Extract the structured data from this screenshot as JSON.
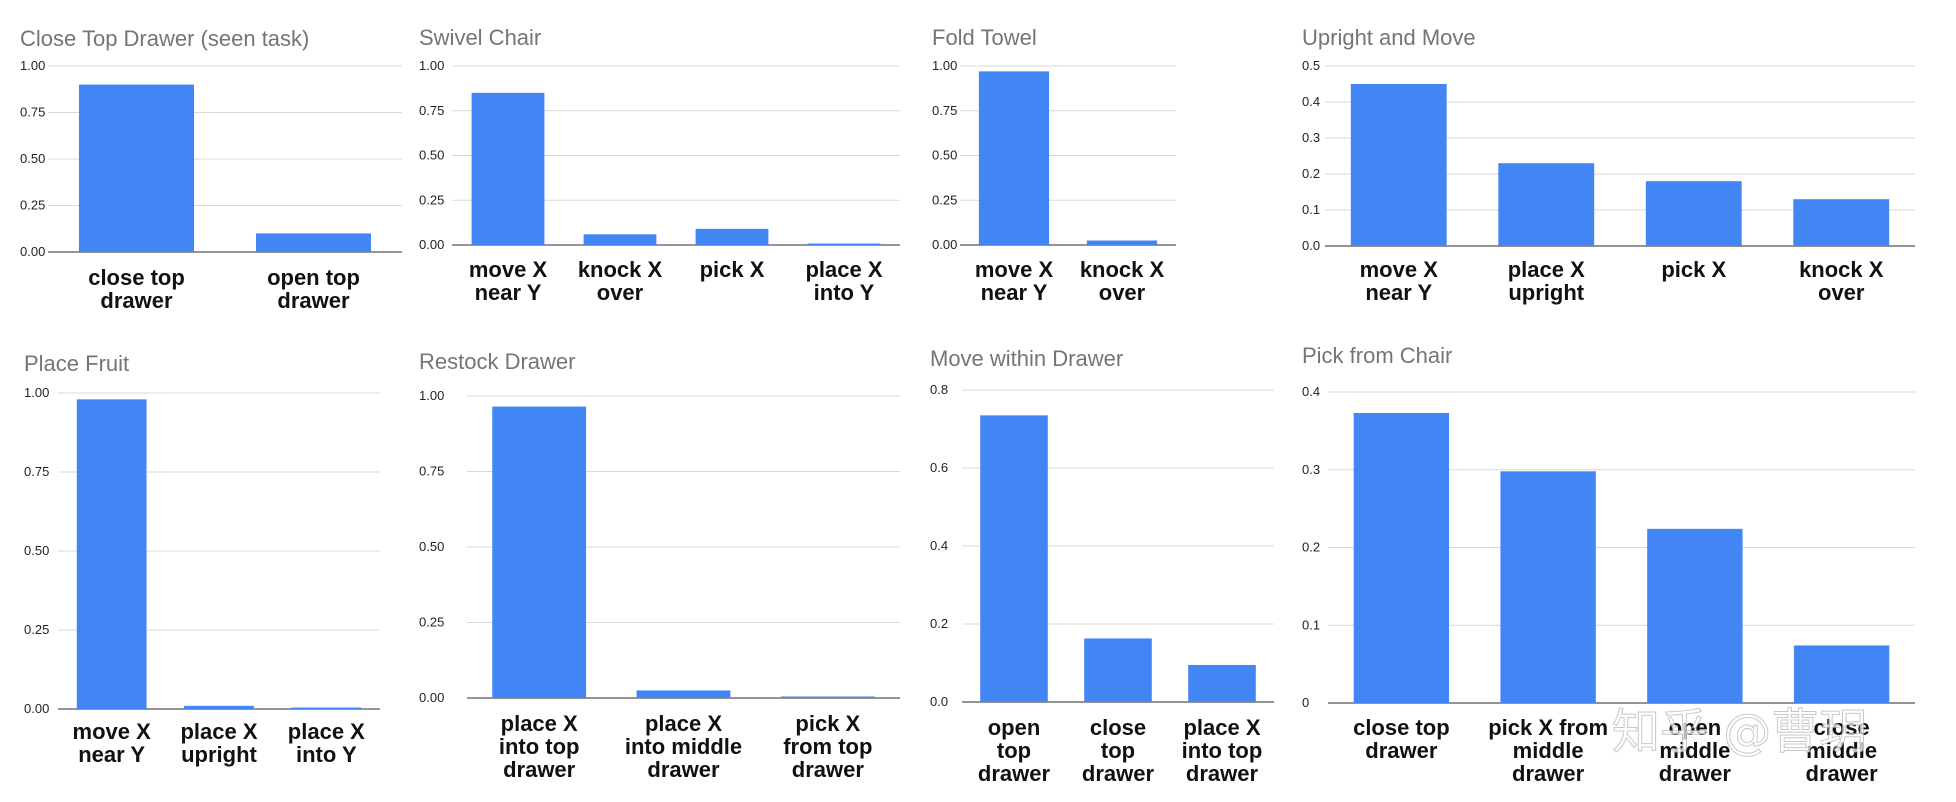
{
  "colors": {
    "bar": "#4285f4",
    "grid": "#d8d8d8",
    "title": "#757575"
  },
  "watermark": "知乎 @曹玥",
  "chart_data": [
    {
      "type": "bar",
      "title": "Close Top Drawer (seen task)",
      "categories": [
        [
          "close top",
          "drawer"
        ],
        [
          "open top",
          "drawer"
        ]
      ],
      "values": [
        0.9,
        0.1
      ],
      "ylim": [
        0,
        1.0
      ],
      "yticks": [
        "0.00",
        "0.25",
        "0.50",
        "0.75",
        "1.00"
      ],
      "grid": true
    },
    {
      "type": "bar",
      "title": "Swivel Chair",
      "categories": [
        [
          "move X",
          "near Y"
        ],
        [
          "knock X",
          "over"
        ],
        [
          "pick X"
        ],
        [
          "place X",
          "into Y"
        ]
      ],
      "values": [
        0.85,
        0.06,
        0.09,
        0.005
      ],
      "ylim": [
        0,
        1.0
      ],
      "yticks": [
        "0.00",
        "0.25",
        "0.50",
        "0.75",
        "1.00"
      ],
      "grid": true
    },
    {
      "type": "bar",
      "title": "Fold Towel",
      "categories": [
        [
          "move X",
          "near Y"
        ],
        [
          "knock X",
          "over"
        ]
      ],
      "values": [
        0.97,
        0.025
      ],
      "ylim": [
        0,
        1.0
      ],
      "yticks": [
        "0.00",
        "0.25",
        "0.50",
        "0.75",
        "1.00"
      ],
      "grid": true
    },
    {
      "type": "bar",
      "title": "Upright and Move",
      "categories": [
        [
          "move X",
          "near Y"
        ],
        [
          "place X",
          "upright"
        ],
        [
          "pick X"
        ],
        [
          "knock X",
          "over"
        ]
      ],
      "values": [
        0.45,
        0.23,
        0.18,
        0.13
      ],
      "ylim": [
        0,
        0.5
      ],
      "yticks": [
        "0.0",
        "0.1",
        "0.2",
        "0.3",
        "0.4",
        "0.5"
      ],
      "grid": true
    },
    {
      "type": "bar",
      "title": "Place Fruit",
      "categories": [
        [
          "move X",
          "near Y"
        ],
        [
          "place X",
          "upright"
        ],
        [
          "place X",
          "into Y"
        ]
      ],
      "values": [
        0.98,
        0.01,
        0.004
      ],
      "ylim": [
        0,
        1.0
      ],
      "yticks": [
        "0.00",
        "0.25",
        "0.50",
        "0.75",
        "1.00"
      ],
      "grid": true
    },
    {
      "type": "bar",
      "title": "Restock Drawer",
      "categories": [
        [
          "place X",
          "into top",
          "drawer"
        ],
        [
          "place X",
          "into middle",
          "drawer"
        ],
        [
          "pick X",
          "from top",
          "drawer"
        ]
      ],
      "values": [
        0.965,
        0.025,
        0.005
      ],
      "ylim": [
        0,
        1.0
      ],
      "yticks": [
        "0.00",
        "0.25",
        "0.50",
        "0.75",
        "1.00"
      ],
      "grid": true
    },
    {
      "type": "bar",
      "title": "Move within Drawer",
      "categories": [
        [
          "open",
          "top",
          "drawer"
        ],
        [
          "close",
          "top",
          "drawer"
        ],
        [
          "place X",
          "into top",
          "drawer"
        ]
      ],
      "values": [
        0.735,
        0.163,
        0.095
      ],
      "ylim": [
        0,
        0.8
      ],
      "yticks": [
        "0.0",
        "0.2",
        "0.4",
        "0.6",
        "0.8"
      ],
      "grid": true
    },
    {
      "type": "bar",
      "title": "Pick from Chair",
      "categories": [
        [
          "close top",
          "drawer"
        ],
        [
          "pick X from",
          "middle",
          "drawer"
        ],
        [
          "open",
          "middle",
          "drawer"
        ],
        [
          "close",
          "middle",
          "drawer"
        ]
      ],
      "values": [
        0.373,
        0.298,
        0.224,
        0.074
      ],
      "ylim": [
        0,
        0.4
      ],
      "yticks": [
        "0",
        "0.1",
        "0.2",
        "0.3",
        "0.4"
      ],
      "grid": true
    }
  ]
}
